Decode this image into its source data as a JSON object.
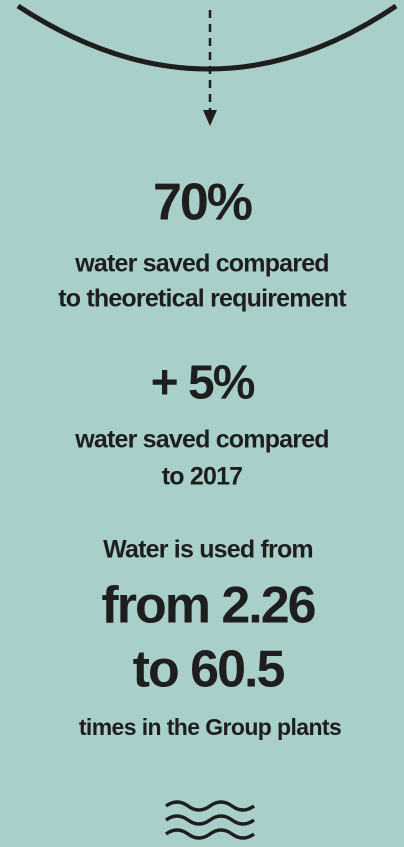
{
  "stats": [
    {
      "value": "70%",
      "caption": [
        "water saved compared",
        "to theoretical requirement"
      ]
    },
    {
      "value": "+ 5%",
      "caption": [
        "water saved compared",
        "to 2017"
      ]
    }
  ],
  "usage": {
    "intro": "Water is used from",
    "range": [
      "from 2.26",
      "to 60.5"
    ],
    "outro": "times in the Group plants"
  }
}
